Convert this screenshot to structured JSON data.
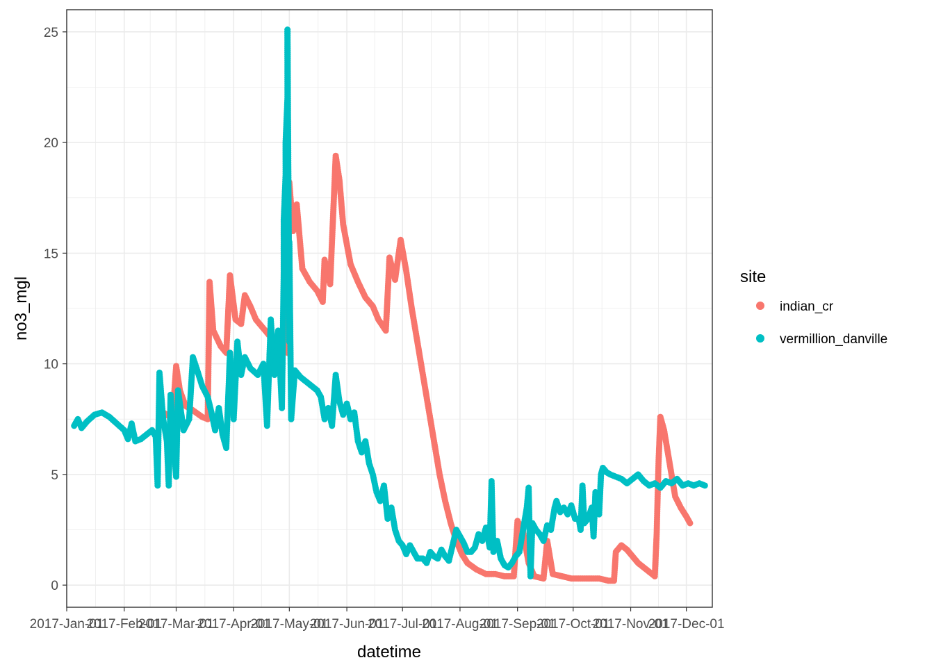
{
  "chart_data": {
    "type": "scatter",
    "xlabel": "datetime",
    "ylabel": "no3_mgl",
    "xlim": [
      "2017-01-01",
      "2017-12-15"
    ],
    "ylim": [
      -1,
      26
    ],
    "yticks": [
      0,
      5,
      10,
      15,
      20,
      25
    ],
    "xticks": [
      "2017-Jan-01",
      "2017-Feb-01",
      "2017-Mar-01",
      "2017-Apr-01",
      "2017-May-01",
      "2017-Jun-01",
      "2017-Jul-01",
      "2017-Aug-01",
      "2017-Sep-01",
      "2017-Oct-01",
      "2017-Nov-01",
      "2017-Dec-01"
    ],
    "xtick_dates": [
      "2017-01-01",
      "2017-02-01",
      "2017-03-01",
      "2017-04-01",
      "2017-05-01",
      "2017-06-01",
      "2017-07-01",
      "2017-08-01",
      "2017-09-01",
      "2017-10-01",
      "2017-11-01",
      "2017-12-01"
    ],
    "grid": true,
    "legend": {
      "title": "site",
      "position": "right"
    },
    "series": [
      {
        "name": "indian_cr",
        "color": "#F8766D",
        "points": [
          [
            "2017-02-20",
            7.9
          ],
          [
            "2017-02-24",
            7.7
          ],
          [
            "2017-02-27",
            7.5
          ],
          [
            "2017-03-01",
            9.9
          ],
          [
            "2017-03-03",
            8.8
          ],
          [
            "2017-03-06",
            8.1
          ],
          [
            "2017-03-10",
            7.9
          ],
          [
            "2017-03-15",
            7.6
          ],
          [
            "2017-03-18",
            7.5
          ],
          [
            "2017-03-19",
            13.7
          ],
          [
            "2017-03-21",
            11.5
          ],
          [
            "2017-03-25",
            10.8
          ],
          [
            "2017-03-28",
            10.5
          ],
          [
            "2017-03-30",
            14.0
          ],
          [
            "2017-04-02",
            12.0
          ],
          [
            "2017-04-05",
            11.8
          ],
          [
            "2017-04-07",
            13.1
          ],
          [
            "2017-04-10",
            12.6
          ],
          [
            "2017-04-13",
            12.0
          ],
          [
            "2017-04-16",
            11.7
          ],
          [
            "2017-04-20",
            11.3
          ],
          [
            "2017-04-25",
            11.0
          ],
          [
            "2017-04-30",
            10.5
          ],
          [
            "2017-05-01",
            18.2
          ],
          [
            "2017-05-03",
            16.0
          ],
          [
            "2017-05-05",
            17.2
          ],
          [
            "2017-05-08",
            14.3
          ],
          [
            "2017-05-12",
            13.7
          ],
          [
            "2017-05-16",
            13.3
          ],
          [
            "2017-05-19",
            12.8
          ],
          [
            "2017-05-20",
            14.7
          ],
          [
            "2017-05-23",
            13.6
          ],
          [
            "2017-05-26",
            19.4
          ],
          [
            "2017-05-28",
            18.3
          ],
          [
            "2017-05-30",
            16.3
          ],
          [
            "2017-06-03",
            14.5
          ],
          [
            "2017-06-07",
            13.7
          ],
          [
            "2017-06-11",
            13.0
          ],
          [
            "2017-06-15",
            12.6
          ],
          [
            "2017-06-18",
            12.0
          ],
          [
            "2017-06-22",
            11.5
          ],
          [
            "2017-06-24",
            14.8
          ],
          [
            "2017-06-27",
            13.8
          ],
          [
            "2017-06-30",
            15.6
          ],
          [
            "2017-07-03",
            14.2
          ],
          [
            "2017-07-06",
            12.5
          ],
          [
            "2017-07-09",
            11.0
          ],
          [
            "2017-07-12",
            9.5
          ],
          [
            "2017-07-15",
            8.0
          ],
          [
            "2017-07-18",
            6.5
          ],
          [
            "2017-07-21",
            5.0
          ],
          [
            "2017-07-24",
            3.8
          ],
          [
            "2017-07-27",
            2.8
          ],
          [
            "2017-07-30",
            2.0
          ],
          [
            "2017-08-02",
            1.4
          ],
          [
            "2017-08-05",
            1.0
          ],
          [
            "2017-08-10",
            0.7
          ],
          [
            "2017-08-15",
            0.5
          ],
          [
            "2017-08-20",
            0.5
          ],
          [
            "2017-08-25",
            0.4
          ],
          [
            "2017-08-30",
            0.4
          ],
          [
            "2017-09-01",
            2.9
          ],
          [
            "2017-09-04",
            2.4
          ],
          [
            "2017-09-07",
            1.0
          ],
          [
            "2017-09-10",
            0.4
          ],
          [
            "2017-09-15",
            0.3
          ],
          [
            "2017-09-17",
            2.0
          ],
          [
            "2017-09-20",
            0.5
          ],
          [
            "2017-09-25",
            0.4
          ],
          [
            "2017-09-30",
            0.3
          ],
          [
            "2017-10-05",
            0.3
          ],
          [
            "2017-10-10",
            0.3
          ],
          [
            "2017-10-15",
            0.3
          ],
          [
            "2017-10-20",
            0.2
          ],
          [
            "2017-10-23",
            0.2
          ],
          [
            "2017-10-24",
            1.5
          ],
          [
            "2017-10-27",
            1.8
          ],
          [
            "2017-10-30",
            1.6
          ],
          [
            "2017-11-02",
            1.3
          ],
          [
            "2017-11-05",
            1.0
          ],
          [
            "2017-11-08",
            0.8
          ],
          [
            "2017-11-11",
            0.6
          ],
          [
            "2017-11-14",
            0.4
          ],
          [
            "2017-11-15",
            2.3
          ],
          [
            "2017-11-16",
            5.5
          ],
          [
            "2017-11-17",
            7.6
          ],
          [
            "2017-11-19",
            7.0
          ],
          [
            "2017-11-21",
            6.0
          ],
          [
            "2017-11-23",
            5.0
          ],
          [
            "2017-11-25",
            4.0
          ],
          [
            "2017-11-28",
            3.5
          ],
          [
            "2017-12-01",
            3.1
          ],
          [
            "2017-12-03",
            2.8
          ]
        ]
      },
      {
        "name": "vermillion_danville",
        "color": "#00BFC4",
        "points": [
          [
            "2017-01-05",
            7.2
          ],
          [
            "2017-01-07",
            7.5
          ],
          [
            "2017-01-09",
            7.1
          ],
          [
            "2017-01-12",
            7.4
          ],
          [
            "2017-01-16",
            7.7
          ],
          [
            "2017-01-20",
            7.8
          ],
          [
            "2017-01-24",
            7.6
          ],
          [
            "2017-01-28",
            7.3
          ],
          [
            "2017-02-01",
            7.0
          ],
          [
            "2017-02-03",
            6.6
          ],
          [
            "2017-02-05",
            7.3
          ],
          [
            "2017-02-07",
            6.5
          ],
          [
            "2017-02-10",
            6.6
          ],
          [
            "2017-02-13",
            6.8
          ],
          [
            "2017-02-16",
            7.0
          ],
          [
            "2017-02-18",
            6.7
          ],
          [
            "2017-02-19",
            4.5
          ],
          [
            "2017-02-20",
            9.6
          ],
          [
            "2017-02-22",
            7.5
          ],
          [
            "2017-02-24",
            6.5
          ],
          [
            "2017-02-25",
            4.5
          ],
          [
            "2017-02-26",
            8.6
          ],
          [
            "2017-02-28",
            6.0
          ],
          [
            "2017-03-01",
            4.9
          ],
          [
            "2017-03-02",
            8.8
          ],
          [
            "2017-03-05",
            7.0
          ],
          [
            "2017-03-08",
            7.5
          ],
          [
            "2017-03-10",
            10.3
          ],
          [
            "2017-03-12",
            9.8
          ],
          [
            "2017-03-15",
            9.0
          ],
          [
            "2017-03-18",
            8.5
          ],
          [
            "2017-03-20",
            7.8
          ],
          [
            "2017-03-22",
            7.0
          ],
          [
            "2017-03-24",
            8.0
          ],
          [
            "2017-03-26",
            6.8
          ],
          [
            "2017-03-28",
            6.2
          ],
          [
            "2017-03-30",
            10.5
          ],
          [
            "2017-04-01",
            7.5
          ],
          [
            "2017-04-03",
            11.0
          ],
          [
            "2017-04-05",
            9.5
          ],
          [
            "2017-04-07",
            10.3
          ],
          [
            "2017-04-10",
            9.8
          ],
          [
            "2017-04-14",
            9.5
          ],
          [
            "2017-04-17",
            10.0
          ],
          [
            "2017-04-19",
            7.2
          ],
          [
            "2017-04-21",
            12.0
          ],
          [
            "2017-04-23",
            9.5
          ],
          [
            "2017-04-25",
            11.5
          ],
          [
            "2017-04-27",
            8.0
          ],
          [
            "2017-04-28",
            14.2
          ],
          [
            "2017-04-28",
            16.5
          ],
          [
            "2017-04-29",
            18.5
          ],
          [
            "2017-04-29",
            20.0
          ],
          [
            "2017-04-30",
            22.0
          ],
          [
            "2017-04-30",
            25.1
          ],
          [
            "2017-05-01",
            11.0
          ],
          [
            "2017-05-01",
            15.5
          ],
          [
            "2017-05-02",
            7.5
          ],
          [
            "2017-05-04",
            9.7
          ],
          [
            "2017-05-07",
            9.4
          ],
          [
            "2017-05-10",
            9.2
          ],
          [
            "2017-05-13",
            9.0
          ],
          [
            "2017-05-16",
            8.8
          ],
          [
            "2017-05-18",
            8.5
          ],
          [
            "2017-05-20",
            7.5
          ],
          [
            "2017-05-22",
            8.0
          ],
          [
            "2017-05-24",
            7.2
          ],
          [
            "2017-05-26",
            9.5
          ],
          [
            "2017-05-28",
            8.3
          ],
          [
            "2017-05-30",
            7.7
          ],
          [
            "2017-06-01",
            8.2
          ],
          [
            "2017-06-03",
            7.5
          ],
          [
            "2017-06-05",
            7.8
          ],
          [
            "2017-06-07",
            6.5
          ],
          [
            "2017-06-09",
            6.0
          ],
          [
            "2017-06-11",
            6.5
          ],
          [
            "2017-06-13",
            5.5
          ],
          [
            "2017-06-15",
            5.0
          ],
          [
            "2017-06-17",
            4.2
          ],
          [
            "2017-06-19",
            3.8
          ],
          [
            "2017-06-21",
            4.5
          ],
          [
            "2017-06-23",
            3.0
          ],
          [
            "2017-06-25",
            3.5
          ],
          [
            "2017-06-27",
            2.5
          ],
          [
            "2017-06-29",
            2.0
          ],
          [
            "2017-07-01",
            1.8
          ],
          [
            "2017-07-03",
            1.4
          ],
          [
            "2017-07-05",
            1.8
          ],
          [
            "2017-07-07",
            1.5
          ],
          [
            "2017-07-09",
            1.2
          ],
          [
            "2017-07-12",
            1.2
          ],
          [
            "2017-07-14",
            1.0
          ],
          [
            "2017-07-16",
            1.5
          ],
          [
            "2017-07-18",
            1.3
          ],
          [
            "2017-07-20",
            1.2
          ],
          [
            "2017-07-22",
            1.6
          ],
          [
            "2017-07-24",
            1.3
          ],
          [
            "2017-07-26",
            1.1
          ],
          [
            "2017-07-28",
            1.8
          ],
          [
            "2017-07-30",
            2.5
          ],
          [
            "2017-08-01",
            2.2
          ],
          [
            "2017-08-03",
            1.9
          ],
          [
            "2017-08-05",
            1.5
          ],
          [
            "2017-08-07",
            1.5
          ],
          [
            "2017-08-09",
            1.7
          ],
          [
            "2017-08-11",
            2.3
          ],
          [
            "2017-08-13",
            2.0
          ],
          [
            "2017-08-15",
            2.6
          ],
          [
            "2017-08-17",
            1.7
          ],
          [
            "2017-08-18",
            4.7
          ],
          [
            "2017-08-19",
            1.5
          ],
          [
            "2017-08-21",
            2.0
          ],
          [
            "2017-08-23",
            1.2
          ],
          [
            "2017-08-25",
            0.9
          ],
          [
            "2017-08-27",
            0.8
          ],
          [
            "2017-08-29",
            1.0
          ],
          [
            "2017-08-31",
            1.3
          ],
          [
            "2017-09-02",
            1.5
          ],
          [
            "2017-09-04",
            2.5
          ],
          [
            "2017-09-06",
            3.5
          ],
          [
            "2017-09-07",
            4.4
          ],
          [
            "2017-09-08",
            0.4
          ],
          [
            "2017-09-09",
            2.8
          ],
          [
            "2017-09-11",
            2.5
          ],
          [
            "2017-09-13",
            2.3
          ],
          [
            "2017-09-15",
            2.0
          ],
          [
            "2017-09-17",
            2.7
          ],
          [
            "2017-09-19",
            2.5
          ],
          [
            "2017-09-21",
            3.5
          ],
          [
            "2017-09-22",
            3.8
          ],
          [
            "2017-09-24",
            3.3
          ],
          [
            "2017-09-26",
            3.5
          ],
          [
            "2017-09-28",
            3.2
          ],
          [
            "2017-09-30",
            3.6
          ],
          [
            "2017-10-02",
            3.0
          ],
          [
            "2017-10-04",
            3.0
          ],
          [
            "2017-10-05",
            2.5
          ],
          [
            "2017-10-06",
            4.5
          ],
          [
            "2017-10-07",
            2.8
          ],
          [
            "2017-10-09",
            3.0
          ],
          [
            "2017-10-11",
            3.5
          ],
          [
            "2017-10-12",
            2.2
          ],
          [
            "2017-10-13",
            4.2
          ],
          [
            "2017-10-15",
            3.2
          ],
          [
            "2017-10-16",
            5.0
          ],
          [
            "2017-10-17",
            5.3
          ],
          [
            "2017-10-19",
            5.1
          ],
          [
            "2017-10-21",
            5.0
          ],
          [
            "2017-10-24",
            4.9
          ],
          [
            "2017-10-27",
            4.8
          ],
          [
            "2017-10-30",
            4.6
          ],
          [
            "2017-11-02",
            4.8
          ],
          [
            "2017-11-05",
            5.0
          ],
          [
            "2017-11-08",
            4.7
          ],
          [
            "2017-11-11",
            4.5
          ],
          [
            "2017-11-14",
            4.6
          ],
          [
            "2017-11-17",
            4.4
          ],
          [
            "2017-11-20",
            4.7
          ],
          [
            "2017-11-23",
            4.6
          ],
          [
            "2017-11-26",
            4.8
          ],
          [
            "2017-11-29",
            4.5
          ],
          [
            "2017-12-02",
            4.6
          ],
          [
            "2017-12-05",
            4.5
          ],
          [
            "2017-12-08",
            4.6
          ],
          [
            "2017-12-11",
            4.5
          ]
        ]
      }
    ]
  }
}
